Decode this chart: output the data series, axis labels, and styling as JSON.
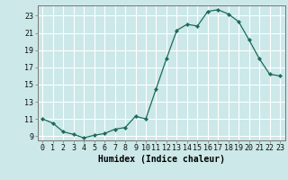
{
  "x": [
    0,
    1,
    2,
    3,
    4,
    5,
    6,
    7,
    8,
    9,
    10,
    11,
    12,
    13,
    14,
    15,
    16,
    17,
    18,
    19,
    20,
    21,
    22,
    23
  ],
  "y": [
    11,
    10.5,
    9.5,
    9.2,
    8.8,
    9.1,
    9.3,
    9.8,
    10.0,
    11.3,
    11.0,
    14.5,
    18.0,
    21.3,
    22.0,
    21.8,
    23.5,
    23.7,
    23.2,
    22.3,
    20.2,
    18.0,
    16.2,
    16.0
  ],
  "line_color": "#1a6b5a",
  "marker": "D",
  "marker_size": 2.2,
  "bg_color": "#cce8e8",
  "grid_color": "#ffffff",
  "xlabel": "Humidex (Indice chaleur)",
  "xlim": [
    -0.5,
    23.5
  ],
  "ylim": [
    8.5,
    24.2
  ],
  "yticks": [
    9,
    11,
    13,
    15,
    17,
    19,
    21,
    23
  ],
  "xticks": [
    0,
    1,
    2,
    3,
    4,
    5,
    6,
    7,
    8,
    9,
    10,
    11,
    12,
    13,
    14,
    15,
    16,
    17,
    18,
    19,
    20,
    21,
    22,
    23
  ],
  "xlabel_fontsize": 7.0,
  "tick_fontsize": 6.0
}
